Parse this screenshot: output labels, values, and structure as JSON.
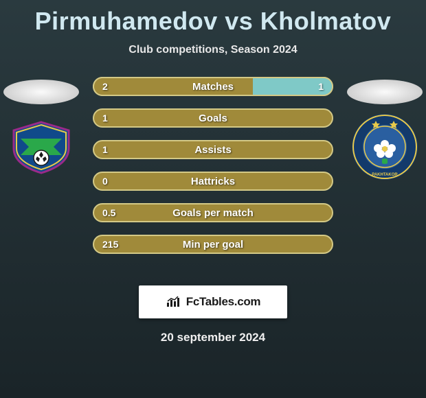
{
  "title": "Pirmuhamedov vs Kholmatov",
  "subtitle": "Club competitions, Season 2024",
  "date": "20 september 2024",
  "fctables_label": "FcTables.com",
  "colors": {
    "row_bg": "#a08a3a",
    "row_border": "#d4c986",
    "alt_fill": "#7fc9c7",
    "stat_text": "#ffffff"
  },
  "bars": [
    {
      "label": "Matches",
      "left": "2",
      "right": "1",
      "left_color": "#a08a3a",
      "right_color": "#7fc9c7",
      "left_pct": 66.6,
      "right_pct": 33.4
    },
    {
      "label": "Goals",
      "left": "1",
      "right": "",
      "left_color": "#a08a3a",
      "right_color": "#a08a3a",
      "left_pct": 100,
      "right_pct": 0
    },
    {
      "label": "Assists",
      "left": "1",
      "right": "",
      "left_color": "#a08a3a",
      "right_color": "#a08a3a",
      "left_pct": 100,
      "right_pct": 0
    },
    {
      "label": "Hattricks",
      "left": "0",
      "right": "",
      "left_color": "#a08a3a",
      "right_color": "#a08a3a",
      "left_pct": 100,
      "right_pct": 0
    },
    {
      "label": "Goals per match",
      "left": "0.5",
      "right": "",
      "left_color": "#a08a3a",
      "right_color": "#a08a3a",
      "left_pct": 100,
      "right_pct": 0
    },
    {
      "label": "Min per goal",
      "left": "215",
      "right": "",
      "left_color": "#a08a3a",
      "right_color": "#a08a3a",
      "left_pct": 100,
      "right_pct": 0
    }
  ],
  "left_club": {
    "name": "club-left-badge"
  },
  "right_club": {
    "name": "Pakhtakor",
    "badge_outer": "#133a6b",
    "badge_inner": "#2a5fa0",
    "badge_ring": "#e8c94a",
    "cotton": "#ffffff"
  }
}
